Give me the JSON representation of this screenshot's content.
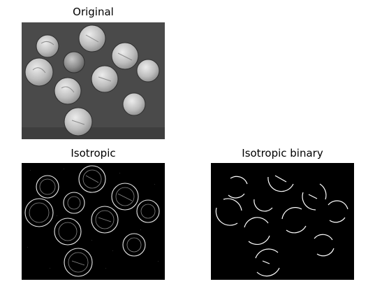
{
  "figure": {
    "panels": [
      {
        "title": "Original"
      },
      {
        "title": "Isotropic"
      },
      {
        "title": "Isotropic binary"
      }
    ]
  },
  "colors": {
    "original_background": "#4d4d4d",
    "coin_fill": "#c8c8c8",
    "edge_background": "#000000",
    "edge_color": "#ffffff"
  }
}
